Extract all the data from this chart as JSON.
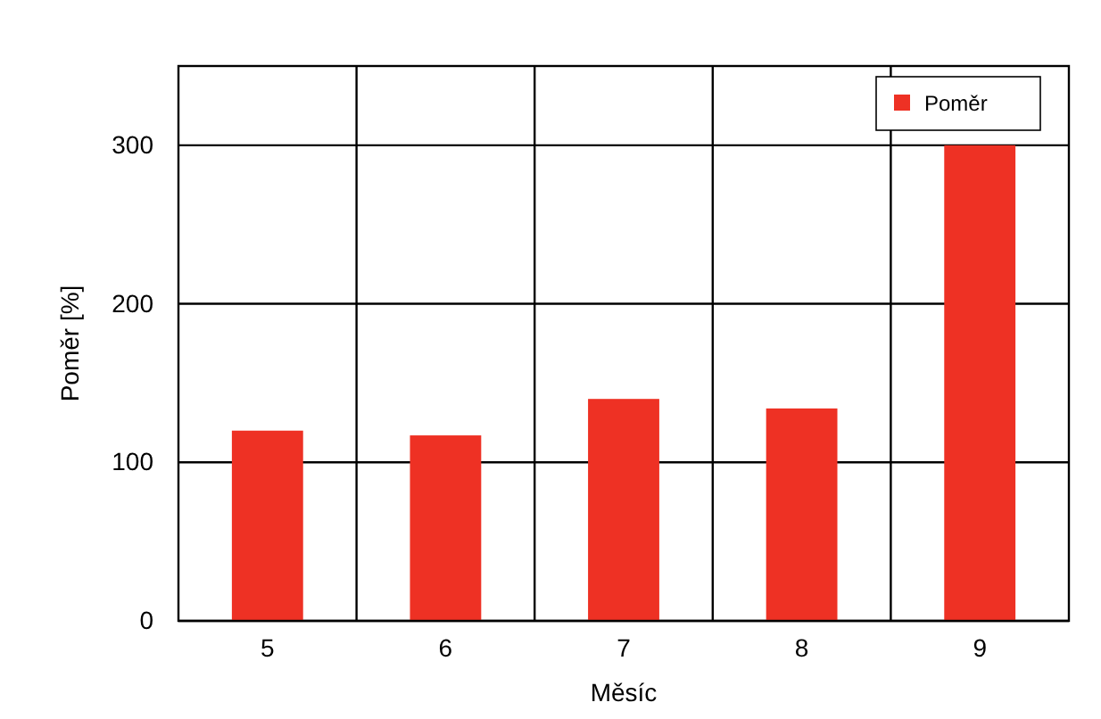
{
  "chart_data": {
    "type": "bar",
    "xlabel": "Měsíc",
    "ylabel": "Poměr [%]",
    "categories": [
      "5",
      "6",
      "7",
      "8",
      "9"
    ],
    "series": [
      {
        "name": "Poměr",
        "color": "#ee3124",
        "values": [
          120,
          117,
          140,
          134,
          300
        ]
      }
    ],
    "ylim": [
      0,
      350
    ],
    "yticks": [
      0,
      100,
      200,
      300
    ],
    "grid": true,
    "legend": "top right"
  }
}
